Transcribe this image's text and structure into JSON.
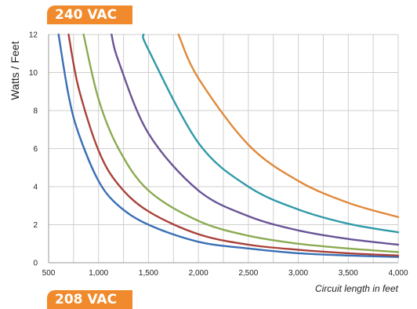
{
  "header": {
    "badge_label": "240 VAC",
    "badge_bottom_label": "208 VAC"
  },
  "chart_data": {
    "type": "line",
    "title": "240 VAC",
    "xlabel": "Circuit length in feet",
    "ylabel": "Watts / Feet",
    "xlim": [
      500,
      4000
    ],
    "ylim": [
      0,
      12
    ],
    "grid": true,
    "x_ticks": [
      500,
      1000,
      1500,
      2000,
      2500,
      3000,
      3500,
      4000
    ],
    "x_tick_labels": [
      "500",
      "1,000",
      "1,500",
      "2,000",
      "2,500",
      "3,000",
      "3,500",
      "4,000"
    ],
    "y_ticks": [
      0,
      2,
      4,
      6,
      8,
      10,
      12
    ],
    "y_tick_labels": [
      "0",
      "2",
      "4",
      "6",
      "8",
      "10",
      "12"
    ],
    "series": [
      {
        "color": "#3a6fb5",
        "x": [
          600,
          700,
          800,
          1000,
          1200,
          1500,
          2000,
          2500,
          3000,
          3500,
          4000
        ],
        "y": [
          12.0,
          8.8,
          6.8,
          4.3,
          3.0,
          2.0,
          1.1,
          0.75,
          0.5,
          0.38,
          0.3
        ]
      },
      {
        "color": "#a8423a",
        "x": [
          700,
          800,
          1000,
          1200,
          1500,
          2000,
          2500,
          3000,
          3500,
          4000
        ],
        "y": [
          12.0,
          9.2,
          5.9,
          4.1,
          2.7,
          1.5,
          0.95,
          0.68,
          0.5,
          0.38
        ]
      },
      {
        "color": "#8bab52",
        "x": [
          850,
          1000,
          1200,
          1500,
          2000,
          2500,
          3000,
          3500,
          4000
        ],
        "y": [
          12.0,
          8.6,
          6.0,
          3.8,
          2.2,
          1.42,
          1.0,
          0.75,
          0.56
        ]
      },
      {
        "color": "#6a5496",
        "x": [
          1130,
          1200,
          1500,
          2000,
          2500,
          3000,
          3500,
          4000
        ],
        "y": [
          12.0,
          10.6,
          6.8,
          3.8,
          2.45,
          1.7,
          1.25,
          0.95
        ]
      },
      {
        "color": "#2f9aa8",
        "x": [
          1450,
          1500,
          2000,
          2500,
          3000,
          3500,
          4000
        ],
        "y": [
          12.0,
          11.2,
          6.3,
          4.0,
          2.8,
          2.05,
          1.6
        ]
      },
      {
        "color": "#e08a3c",
        "x": [
          1800,
          2000,
          2500,
          3000,
          3500,
          4000
        ],
        "y": [
          12.0,
          9.7,
          6.2,
          4.3,
          3.15,
          2.4
        ]
      }
    ]
  }
}
